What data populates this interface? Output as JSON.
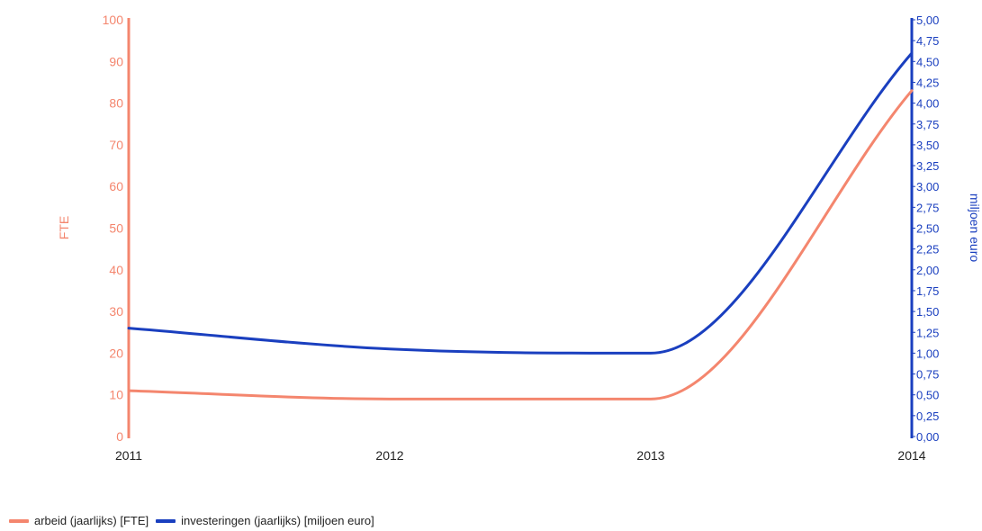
{
  "chart_data": {
    "type": "line",
    "x": [
      "2011",
      "2012",
      "2013",
      "2014"
    ],
    "y_left": {
      "label": "FTE",
      "range": [
        0,
        100
      ],
      "ticks": [
        "0",
        "10",
        "20",
        "30",
        "40",
        "50",
        "60",
        "70",
        "80",
        "90",
        "100"
      ],
      "color": "#f4866e"
    },
    "y_right": {
      "label": "miljoen euro",
      "range": [
        0,
        5
      ],
      "ticks": [
        "0,00",
        "0,25",
        "0,50",
        "0,75",
        "1,00",
        "1,25",
        "1,50",
        "1,75",
        "2,00",
        "2,25",
        "2,50",
        "2,75",
        "3,00",
        "3,25",
        "3,50",
        "3,75",
        "4,00",
        "4,25",
        "4,50",
        "4,75",
        "5,00"
      ],
      "color": "#1a3fbf"
    },
    "series": [
      {
        "name": "arbeid (jaarlijks) [FTE]",
        "axis": "left",
        "color": "#f4866e",
        "values": [
          11,
          9,
          9,
          83
        ]
      },
      {
        "name": "investeringen (jaarlijks) [miljoen euro]",
        "axis": "right",
        "color": "#1a3fbf",
        "values": [
          1.3,
          1.05,
          1.0,
          4.6
        ]
      }
    ],
    "legend_position": "bottom-left",
    "grid": false
  }
}
